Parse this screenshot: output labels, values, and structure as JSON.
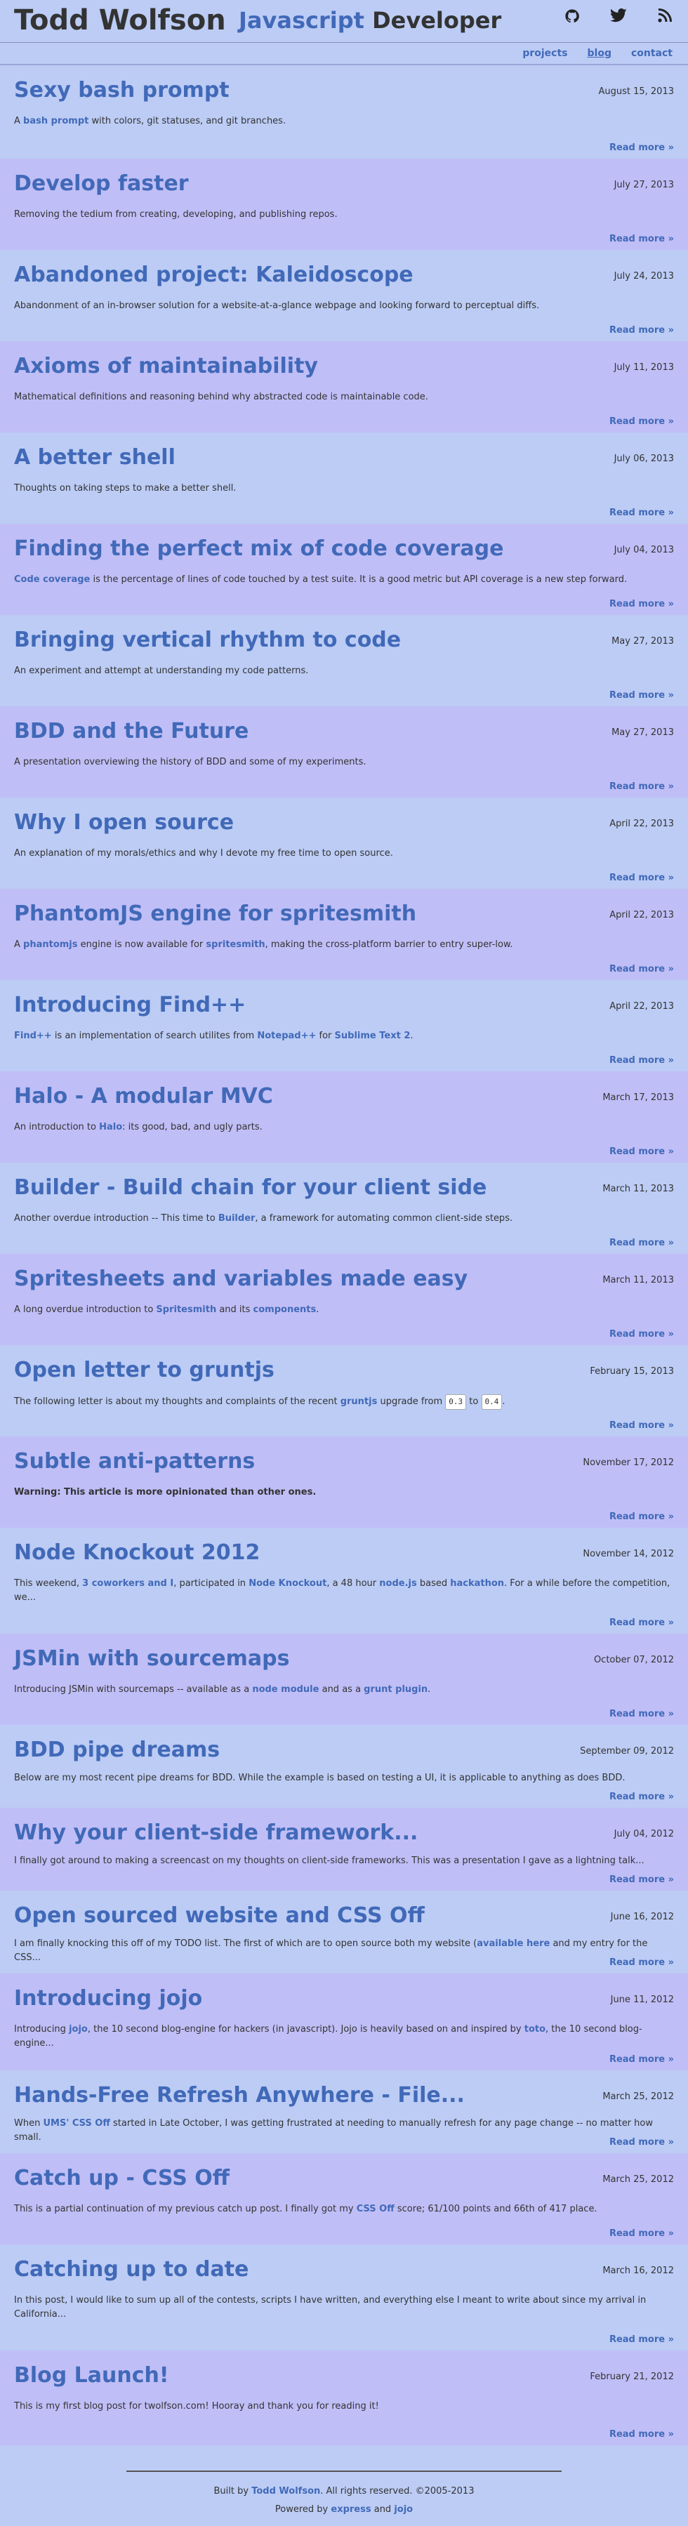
{
  "header": {
    "name": "Todd Wolfson",
    "role_js": "Javascript",
    "role_dev": "Developer",
    "icons": [
      "github-icon",
      "twitter-icon",
      "rss-icon"
    ]
  },
  "nav": {
    "projects": "projects",
    "blog": "blog",
    "contact": "contact"
  },
  "read_more": "Read more »",
  "posts": [
    {
      "title": "Sexy bash prompt",
      "date": "August 15, 2013",
      "summary": [
        [
          "t",
          "A "
        ],
        [
          "b",
          "bash prompt"
        ],
        [
          "t",
          " with colors, git statuses, and git branches."
        ]
      ]
    },
    {
      "title": "Develop faster",
      "date": "July 27, 2013",
      "summary": [
        [
          "t",
          "Removing the tedium from creating, developing, and publishing repos."
        ]
      ]
    },
    {
      "title": "Abandoned project: Kaleidoscope",
      "date": "July 24, 2013",
      "summary": [
        [
          "t",
          "Abandonment of an in-browser solution for a website-at-a-glance webpage and looking forward to perceptual diffs."
        ]
      ]
    },
    {
      "title": "Axioms of maintainability",
      "date": "July 11, 2013",
      "summary": [
        [
          "t",
          "Mathematical definitions and reasoning behind why abstracted code is maintainable code."
        ]
      ]
    },
    {
      "title": "A better shell",
      "date": "July 06, 2013",
      "summary": [
        [
          "t",
          "Thoughts on taking steps to make a better shell."
        ]
      ]
    },
    {
      "title": "Finding the perfect mix of code coverage",
      "date": "July 04, 2013",
      "summary": [
        [
          "b",
          "Code coverage"
        ],
        [
          "t",
          " is the percentage of lines of code touched by a test suite. It is a good metric but API coverage is a new step forward."
        ]
      ]
    },
    {
      "title": "Bringing vertical rhythm to code",
      "date": "May 27, 2013",
      "summary": [
        [
          "t",
          "An experiment and attempt at understanding my code patterns."
        ]
      ]
    },
    {
      "title": "BDD and the Future",
      "date": "May 27, 2013",
      "summary": [
        [
          "t",
          "A presentation overviewing the history of BDD and some of my experiments."
        ]
      ]
    },
    {
      "title": "Why I open source",
      "date": "April 22, 2013",
      "summary": [
        [
          "t",
          "An explanation of my morals/ethics and why I devote my free time to open source."
        ]
      ]
    },
    {
      "title": "PhantomJS engine for spritesmith",
      "date": "April 22, 2013",
      "summary": [
        [
          "t",
          "A "
        ],
        [
          "b",
          "phantomjs"
        ],
        [
          "t",
          " engine is now available for "
        ],
        [
          "b",
          "spritesmith"
        ],
        [
          "t",
          ", making the cross-platform barrier to entry super-low."
        ]
      ]
    },
    {
      "title": "Introducing Find++",
      "date": "April 22, 2013",
      "summary": [
        [
          "b",
          "Find++"
        ],
        [
          "t",
          " is an implementation of search utilites from "
        ],
        [
          "b",
          "Notepad++"
        ],
        [
          "t",
          " for "
        ],
        [
          "b",
          "Sublime Text 2"
        ],
        [
          "t",
          "."
        ]
      ]
    },
    {
      "title": "Halo - A modular MVC",
      "date": "March 17, 2013",
      "summary": [
        [
          "t",
          "An introduction to "
        ],
        [
          "b",
          "Halo"
        ],
        [
          "t",
          ": its good, bad, and ugly parts."
        ]
      ]
    },
    {
      "title": "Builder - Build chain for your client side",
      "date": "March 11, 2013",
      "summary": [
        [
          "t",
          "Another overdue introduction -- This time to "
        ],
        [
          "b",
          "Builder"
        ],
        [
          "t",
          ", a framework for automating common client-side steps."
        ]
      ]
    },
    {
      "title": "Spritesheets and variables made easy",
      "date": "March 11, 2013",
      "summary": [
        [
          "t",
          "A long overdue introduction to "
        ],
        [
          "b",
          "Spritesmith"
        ],
        [
          "t",
          " and its "
        ],
        [
          "b",
          "components"
        ],
        [
          "t",
          "."
        ]
      ]
    },
    {
      "title": "Open letter to gruntjs",
      "date": "February 15, 2013",
      "summary": [
        [
          "t",
          "The following letter is about my thoughts and complaints of the recent "
        ],
        [
          "b",
          "gruntjs"
        ],
        [
          "t",
          " upgrade from "
        ],
        [
          "c",
          "0.3"
        ],
        [
          "t",
          " to "
        ],
        [
          "c",
          "0.4"
        ],
        [
          "t",
          "."
        ]
      ]
    },
    {
      "title": "Subtle anti-patterns",
      "date": "November 17, 2012",
      "summary": [
        [
          "s",
          "Warning: This article is more opinionated than other ones."
        ]
      ]
    },
    {
      "title": "Node Knockout 2012",
      "date": "November 14, 2012",
      "summary": [
        [
          "t",
          "This weekend, "
        ],
        [
          "b",
          "3 coworkers and I"
        ],
        [
          "t",
          ", participated in "
        ],
        [
          "b",
          "Node Knockout"
        ],
        [
          "t",
          ", a 48 hour "
        ],
        [
          "b",
          "node.js"
        ],
        [
          "t",
          " based "
        ],
        [
          "b",
          "hackathon"
        ],
        [
          "t",
          ". For a while before the competition, we..."
        ]
      ]
    },
    {
      "title": "JSMin with sourcemaps",
      "date": "October 07, 2012",
      "summary": [
        [
          "t",
          "Introducing JSMin with sourcemaps -- available as a "
        ],
        [
          "b",
          "node module"
        ],
        [
          "t",
          " and as a "
        ],
        [
          "b",
          "grunt plugin"
        ],
        [
          "t",
          "."
        ]
      ]
    },
    {
      "title": "BDD pipe dreams",
      "date": "September 09, 2012",
      "summary": [
        [
          "t",
          "Below are my most recent pipe dreams for BDD. While the example is based on testing a UI, it is applicable to anything as does BDD."
        ]
      ]
    },
    {
      "title": "Why your client-side framework...",
      "date": "July 04, 2012",
      "summary": [
        [
          "t",
          "I finally got around to making a screencast on my thoughts on client-side frameworks. This was a presentation I gave as a lightning talk..."
        ]
      ]
    },
    {
      "title": "Open sourced website and CSS Off",
      "date": "June 16, 2012",
      "summary": [
        [
          "t",
          "I am finally knocking this off of my TODO list. The first of which are to open source both my website ("
        ],
        [
          "b",
          "available here"
        ],
        [
          "t",
          " and my entry for the CSS..."
        ]
      ]
    },
    {
      "title": "Introducing jojo",
      "date": "June 11, 2012",
      "summary": [
        [
          "t",
          "Introducing "
        ],
        [
          "b",
          "jojo"
        ],
        [
          "t",
          ", the 10 second blog-engine for hackers (in javascript). Jojo is heavily based on and inspired by "
        ],
        [
          "b",
          "toto"
        ],
        [
          "t",
          ", the 10 second blog-engine..."
        ]
      ]
    },
    {
      "title": "Hands-Free Refresh Anywhere - File...",
      "date": "March 25, 2012",
      "summary": [
        [
          "t",
          "When "
        ],
        [
          "b",
          "UMS' CSS Off"
        ],
        [
          "t",
          " started in Late October, I was getting frustrated at needing to manually refresh for any page change -- no matter how small."
        ]
      ]
    },
    {
      "title": "Catch up - CSS Off",
      "date": "March 25, 2012",
      "summary": [
        [
          "t",
          "This is a partial continuation of my previous catch up post. I finally got my "
        ],
        [
          "b",
          "CSS Off"
        ],
        [
          "t",
          " score; 61/100 points and 66th of 417 place."
        ]
      ]
    },
    {
      "title": "Catching up to date",
      "date": "March 16, 2012",
      "summary": [
        [
          "t",
          "In this post, I would like to sum up all of the contests, scripts I have written, and everything else I meant to write about since my arrival in California..."
        ]
      ]
    },
    {
      "title": "Blog Launch!",
      "date": "February 21, 2012",
      "summary": [
        [
          "t",
          "This is my first blog post for twolfson.com! Hooray and thank you for reading it!"
        ]
      ]
    }
  ],
  "footer": {
    "built_by": "Built by ",
    "author": "Todd Wolfson",
    "rights": ". All rights reserved. ©2005-2013",
    "powered_by": "Powered by ",
    "express": "express",
    "and": " and ",
    "jojo": "jojo"
  }
}
